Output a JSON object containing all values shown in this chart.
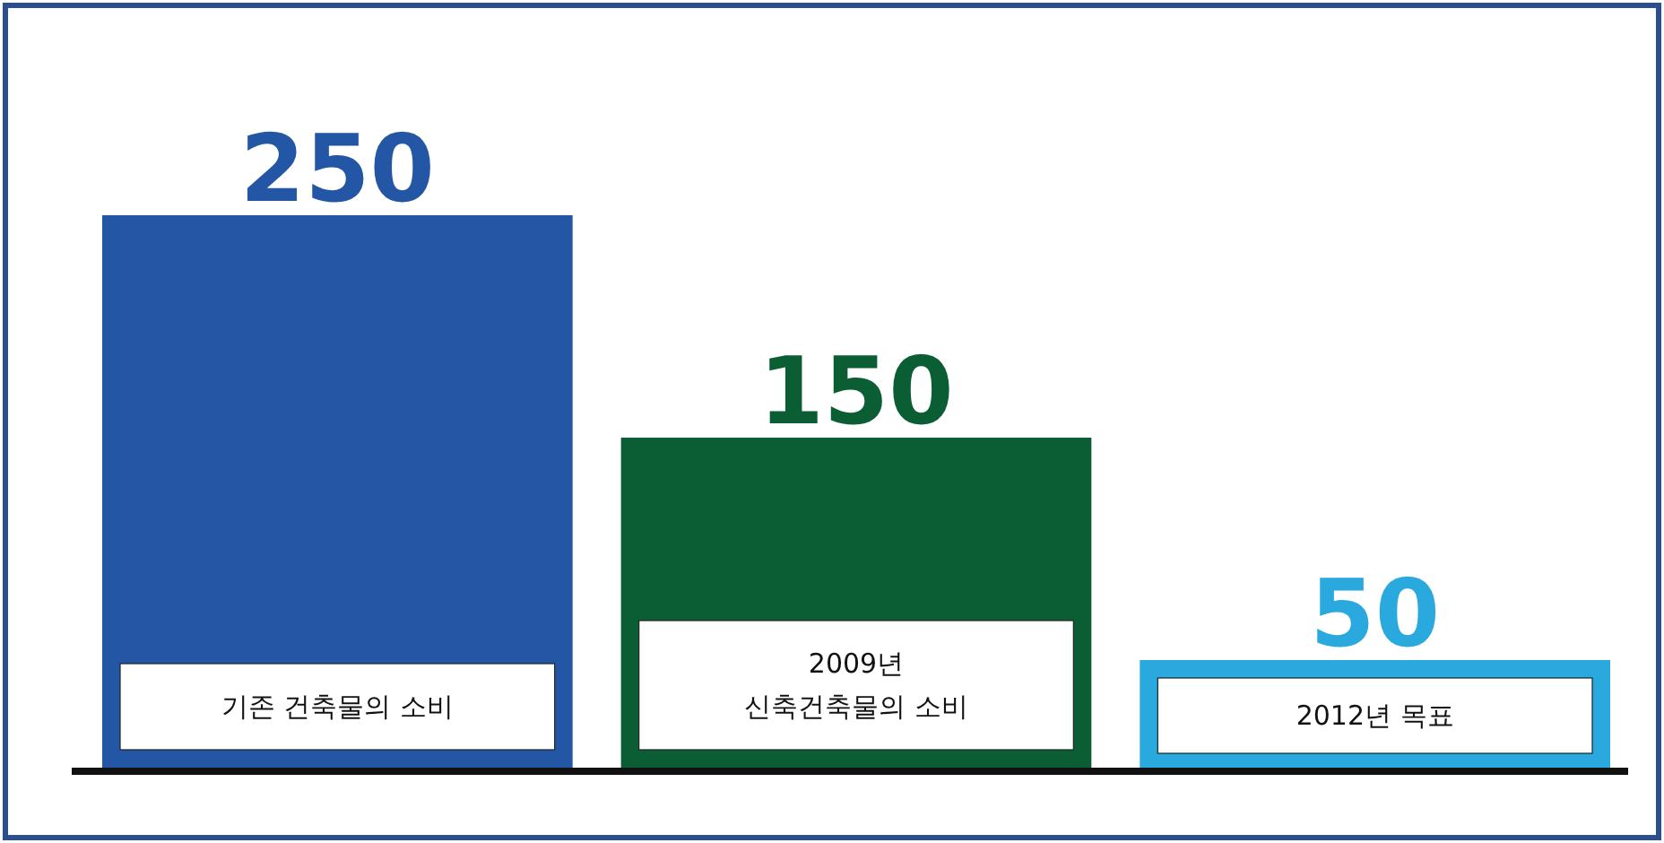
{
  "chart_data": {
    "type": "bar",
    "categories": [
      "기존 건축물의 소비",
      "2009년\n신축건축물의 소비",
      "2012년 목표"
    ],
    "values": [
      250,
      150,
      50
    ],
    "colors": [
      "#2456a6",
      "#0b5e34",
      "#2aa9df"
    ],
    "data_labels": true
  }
}
